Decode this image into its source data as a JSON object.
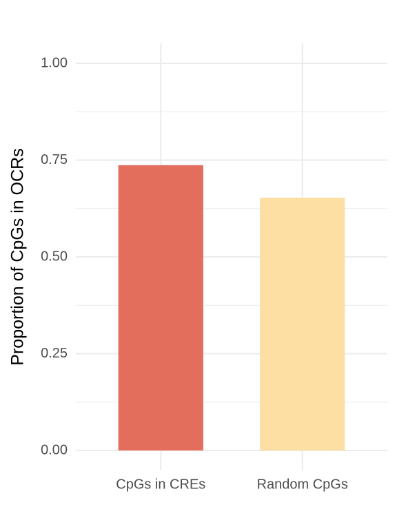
{
  "chart_data": {
    "type": "bar",
    "ylabel": "Proportion of CpGs in OCRs",
    "categories": [
      "CpGs in CREs",
      "Random CpGs"
    ],
    "values": [
      0.737,
      0.653
    ],
    "colors": [
      "#E36E5C",
      "#FDDFA4"
    ],
    "ylim": [
      -0.0516,
      1.0516
    ],
    "yticks": [
      {
        "value": 0,
        "label": "0.00"
      },
      {
        "value": 0.25,
        "label": "0.25"
      },
      {
        "value": 0.5,
        "label": "0.50"
      },
      {
        "value": 0.75,
        "label": "0.75"
      },
      {
        "value": 1,
        "label": "1.00"
      }
    ],
    "y_minor_grid": [
      0.125,
      0.375,
      0.625,
      0.875
    ],
    "grid": true
  }
}
